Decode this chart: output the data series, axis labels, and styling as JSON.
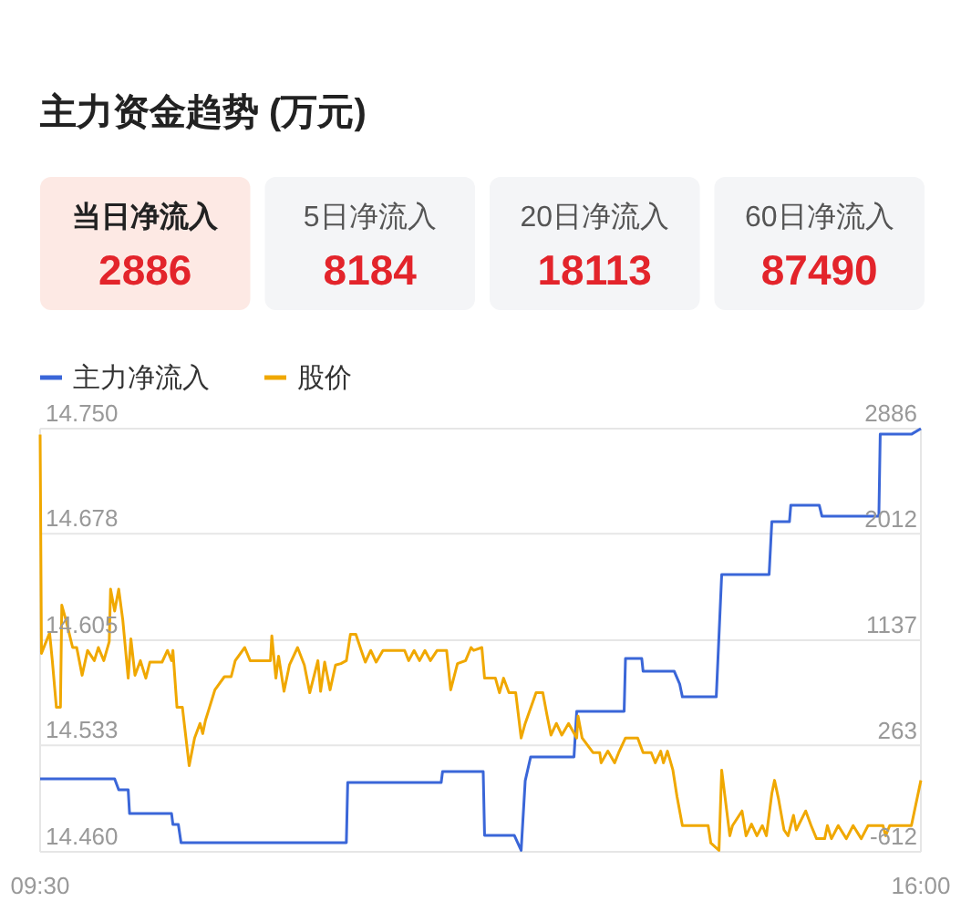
{
  "chart_data": [
    {
      "type": "other",
      "title": "主力资金趋势 (万元)",
      "categories": [
        "当日净流入",
        "5日净流入",
        "20日净流入",
        "60日净流入"
      ],
      "values": [
        2886,
        8184,
        18113,
        87490
      ],
      "data_labels": true
    },
    {
      "type": "line",
      "legend": "top left",
      "grid": "y",
      "xlim": [
        9.5,
        16
      ],
      "xticks": [
        {
          "value": 9.5,
          "label": "09:30"
        },
        {
          "value": 16,
          "label": "16:00"
        }
      ],
      "ylim": [
        14.46,
        14.75
      ],
      "yticks": [
        {
          "value": 14.46,
          "label": "14.460"
        },
        {
          "value": 14.533,
          "label": "14.533"
        },
        {
          "value": 14.605,
          "label": "14.605"
        },
        {
          "value": 14.678,
          "label": "14.678"
        },
        {
          "value": 14.75,
          "label": "14.750"
        }
      ],
      "y2lim": [
        -612,
        2886
      ],
      "y2ticks": [
        -612,
        263,
        1137,
        2012,
        2886
      ],
      "series": [
        {
          "name": "主力净流入",
          "color": "#3a66d8",
          "axis": "y2",
          "x": [
            9.5,
            10.05,
            10.08,
            10.15,
            10.16,
            10.47,
            10.48,
            10.52,
            10.54,
            11.76,
            11.77,
            12.46,
            12.47,
            12.77,
            12.78,
            13.0,
            13.05,
            13.08,
            13.12,
            13.44,
            13.46,
            13.81,
            13.82,
            13.94,
            13.95,
            14.18,
            14.22,
            14.24,
            14.49,
            14.53,
            14.88,
            14.9,
            15.03,
            15.04,
            15.25,
            15.27,
            15.69,
            15.7,
            15.93,
            16.0
          ],
          "values": [
            -9,
            -9,
            -100,
            -100,
            -296,
            -296,
            -386,
            -386,
            -537,
            -537,
            -39,
            -39,
            51,
            51,
            -477,
            -477,
            -600,
            -25,
            172,
            172,
            549,
            549,
            986,
            986,
            880,
            880,
            775,
            669,
            669,
            1680,
            1680,
            2117,
            2117,
            2253,
            2253,
            2162,
            2162,
            2840,
            2840,
            2886
          ]
        },
        {
          "name": "股价",
          "color": "#f0a800",
          "axis": "y",
          "x": [
            9.5,
            9.51,
            9.57,
            9.59,
            9.62,
            9.65,
            9.66,
            9.69,
            9.74,
            9.77,
            9.81,
            9.85,
            9.9,
            9.93,
            9.97,
            10.01,
            10.02,
            10.05,
            10.08,
            10.11,
            10.15,
            10.17,
            10.2,
            10.24,
            10.28,
            10.31,
            10.4,
            10.44,
            10.47,
            10.48,
            10.51,
            10.55,
            10.6,
            10.64,
            10.68,
            10.7,
            10.72,
            10.75,
            10.79,
            10.86,
            10.91,
            10.94,
            11.01,
            11.05,
            11.2,
            11.21,
            11.24,
            11.26,
            11.3,
            11.34,
            11.4,
            11.45,
            11.49,
            11.55,
            11.57,
            11.6,
            11.64,
            11.68,
            11.72,
            11.76,
            11.79,
            11.83,
            11.87,
            11.9,
            11.94,
            11.98,
            12.03,
            12.19,
            12.22,
            12.26,
            12.3,
            12.34,
            12.38,
            12.43,
            12.5,
            12.53,
            12.58,
            12.64,
            12.68,
            12.7,
            12.76,
            12.78,
            12.86,
            12.89,
            12.92,
            12.96,
            13.01,
            13.05,
            13.08,
            13.16,
            13.21,
            13.24,
            13.27,
            13.31,
            13.35,
            13.4,
            13.46,
            13.47,
            13.5,
            13.58,
            13.63,
            13.64,
            13.69,
            13.74,
            13.77,
            13.82,
            13.91,
            13.95,
            14.01,
            14.04,
            14.08,
            14.1,
            14.13,
            14.17,
            14.2,
            14.24,
            14.43,
            14.45,
            14.51,
            14.53,
            14.59,
            14.61,
            14.68,
            14.71,
            14.75,
            14.79,
            14.83,
            14.86,
            14.9,
            14.92,
            14.95,
            14.99,
            15.02,
            15.06,
            15.08,
            15.15,
            15.19,
            15.23,
            15.29,
            15.31,
            15.34,
            15.39,
            15.45,
            15.5,
            15.56,
            15.61,
            15.72,
            15.74,
            15.77,
            15.93,
            16.0
          ],
          "values": [
            14.746,
            14.596,
            14.61,
            14.591,
            14.559,
            14.559,
            14.629,
            14.619,
            14.6,
            14.6,
            14.581,
            14.598,
            14.591,
            14.6,
            14.591,
            14.604,
            14.64,
            14.625,
            14.64,
            14.619,
            14.579,
            14.606,
            14.581,
            14.591,
            14.579,
            14.59,
            14.59,
            14.598,
            14.591,
            14.598,
            14.559,
            14.559,
            14.519,
            14.538,
            14.548,
            14.541,
            14.55,
            14.559,
            14.571,
            14.58,
            14.58,
            14.591,
            14.6,
            14.591,
            14.591,
            14.608,
            14.579,
            14.594,
            14.57,
            14.588,
            14.6,
            14.588,
            14.569,
            14.591,
            14.57,
            14.59,
            14.571,
            14.588,
            14.589,
            14.591,
            14.609,
            14.609,
            14.598,
            14.59,
            14.598,
            14.59,
            14.598,
            14.598,
            14.591,
            14.598,
            14.591,
            14.598,
            14.591,
            14.598,
            14.598,
            14.571,
            14.589,
            14.591,
            14.6,
            14.598,
            14.6,
            14.579,
            14.579,
            14.569,
            14.579,
            14.569,
            14.569,
            14.538,
            14.548,
            14.569,
            14.569,
            14.554,
            14.54,
            14.548,
            14.54,
            14.548,
            14.538,
            14.553,
            14.538,
            14.528,
            14.528,
            14.521,
            14.529,
            14.521,
            14.528,
            14.538,
            14.538,
            14.528,
            14.528,
            14.521,
            14.529,
            14.521,
            14.529,
            14.516,
            14.498,
            14.478,
            14.478,
            14.466,
            14.461,
            14.516,
            14.471,
            14.478,
            14.488,
            14.471,
            14.479,
            14.471,
            14.478,
            14.471,
            14.5,
            14.509,
            14.496,
            14.475,
            14.471,
            14.485,
            14.475,
            14.488,
            14.478,
            14.469,
            14.469,
            14.478,
            14.469,
            14.478,
            14.469,
            14.478,
            14.469,
            14.478,
            14.478,
            14.471,
            14.478,
            14.478,
            14.509
          ]
        }
      ]
    }
  ]
}
